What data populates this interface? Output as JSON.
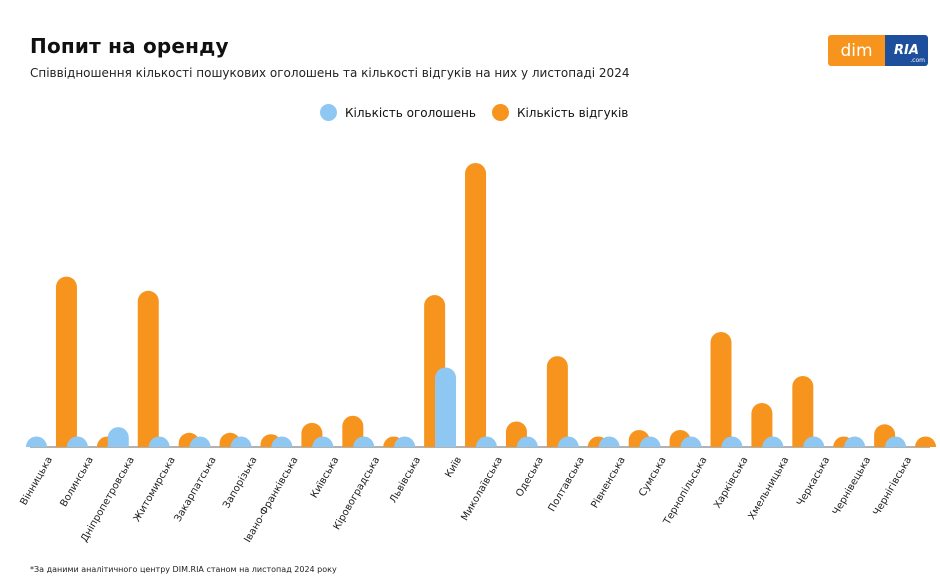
{
  "header": {
    "title": "Попит на оренду",
    "subtitle": "Співвідношення кількості пошукових оголошень та кількості відгуків на них у листопаді 2024"
  },
  "logo": {
    "left": "dim",
    "right": "RIA",
    "right_small": ".com"
  },
  "footnote": "*За даними аналітичного центру DIM.RIA станом на листопад 2024 року",
  "colors": {
    "listings": "#8ec8f2",
    "responses": "#f7941d",
    "axis": "#666666"
  },
  "chart_data": {
    "type": "bar",
    "title": "Попит на оренду",
    "subtitle": "Співвідношення кількості пошукових оголошень та кількості відгуків на них у листопаді 2024",
    "legend_position": "top-center",
    "grid": false,
    "ylim": [
      0,
      100
    ],
    "categories": [
      "Вінницька",
      "Волинська",
      "Дніпропетровська",
      "Житомирська",
      "Закарпатська",
      "Запорізька",
      "Івано-Франківська",
      "Київська",
      "Кіровоградська",
      "Львівська",
      "Київ",
      "Миколаївська",
      "Одеська",
      "Полтавська",
      "Рівненська",
      "Сумська",
      "Тернопільська",
      "Харківська",
      "Хмельницька",
      "Черкаська",
      "Чернівецька",
      "Чернігівська"
    ],
    "series": [
      {
        "name": "Кількість оголошень",
        "color": "#8ec8f2",
        "values": [
          1.5,
          0.5,
          7,
          1,
          0.8,
          0.8,
          1.2,
          1,
          0.5,
          3.5,
          28,
          1.8,
          1.2,
          0.5,
          0.5,
          0.5,
          1,
          0.8,
          1.6,
          0.6,
          0.8,
          0.5
        ]
      },
      {
        "name": "Кількість відгуків",
        "color": "#f7941d",
        "values": [
          60,
          2,
          55,
          5,
          5,
          4.5,
          8.5,
          11,
          1,
          53.5,
          100,
          9,
          32,
          3,
          6,
          6,
          40.5,
          15.5,
          25,
          3,
          8,
          2
        ]
      }
    ]
  }
}
